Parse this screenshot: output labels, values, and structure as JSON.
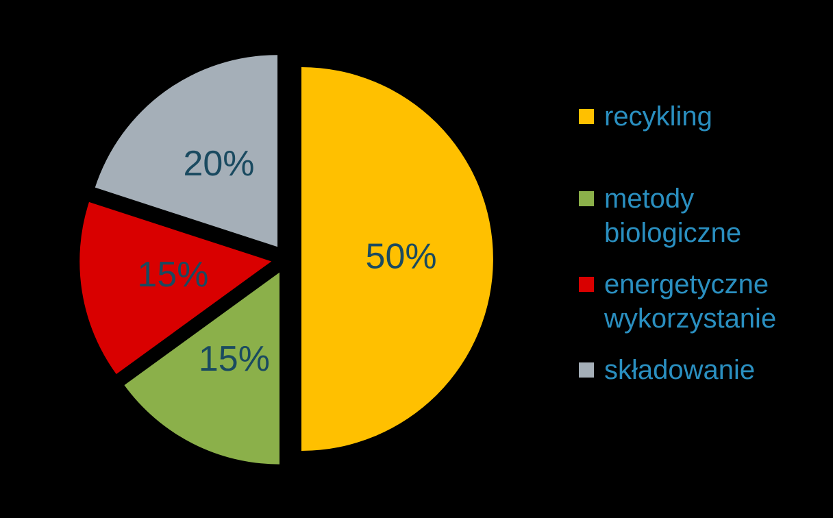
{
  "chart_data": {
    "type": "pie",
    "categories": [
      "recykling",
      "metody biologiczne",
      "energetyczne wykorzystanie",
      "składowanie"
    ],
    "values": [
      50,
      15,
      15,
      20
    ],
    "value_labels": [
      "50%",
      "15%",
      "15%",
      "20%"
    ],
    "colors": [
      "#ffc000",
      "#8bb04a",
      "#d90000",
      "#a5afb8"
    ],
    "legend": "right"
  }
}
